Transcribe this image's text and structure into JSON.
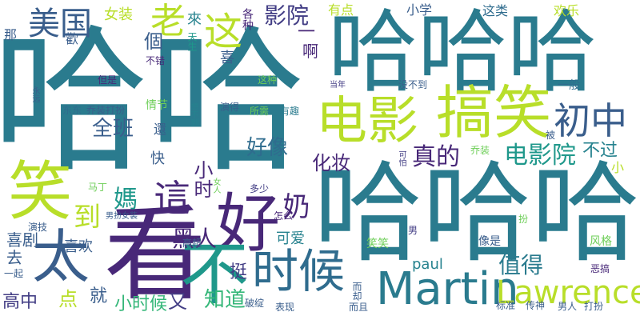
{
  "words": {
    "haha": "哈哈",
    "hahaha_a": "哈哈哈",
    "hahaha_b": "哈哈哈",
    "kan": "看",
    "hao": "好",
    "tai": "太",
    "bu": "不",
    "xiao": "笑",
    "dianying": "电影",
    "gaoxiao": "搞笑",
    "chuzhong": "初中",
    "shihou": "时候",
    "martin": "Martin",
    "lawrence": "Lawrence",
    "meiguo": "美国",
    "zhe_s": "這",
    "zhe": "这",
    "yingyuan": "影院",
    "dianyingyuan": "电影院",
    "haoxiang": "好像",
    "quanban": "全班",
    "zhende": "真的",
    "buguo": "不过",
    "huazhuang": "化妆",
    "nai": "奶",
    "dao": "到",
    "heiren": "黑人",
    "xiaoshi": "小时",
    "ma": "媽",
    "zhidao": "知道",
    "zhide": "值得",
    "xiju": "喜剧",
    "gaozhong": "高中",
    "xiaoshihou": "小时候",
    "ting": "挺",
    "keai": "可爱",
    "paul": "paul",
    "dian": "点",
    "jiu": "就",
    "you": "又",
    "lao": "老",
    "nvzhuang": "女装",
    "youdian": "有点",
    "xiaoxue": "小学",
    "zhelei": "这类",
    "huanle": "欢乐",
    "lai": "來",
    "gezhong": "各种",
    "yi": "一",
    "a": "啊",
    "ge": "個",
    "na": "那",
    "huan": "歡",
    "tiansheng": "天生",
    "xi": "喜",
    "bucuo": "不错",
    "danshi": "但是",
    "zhezhong": "这种",
    "dangnian": "当年",
    "meixiangdao": "没不到",
    "yiban": "一般",
    "yongyuan": "永远",
    "dongdong": "东东",
    "qiaozhuangdaban": "乔装打扮",
    "qingjie": "情节",
    "xiangbudao": "想不到",
    "yanguo": "演得",
    "suoxu": "所需",
    "youqu": "有趣",
    "bei": "被",
    "huan2": "還",
    "kuai": "快",
    "kepa": "可怕",
    "qiaozhuang": "乔装",
    "xiao2": "小",
    "mading": "马丁",
    "nvren": "女人",
    "duoshao": "多少",
    "nanban": "男扮女装",
    "zenme": "怎么",
    "ban": "扮",
    "yanji": "演技",
    "xihuan": "喜欢",
    "qu": "去",
    "gaochao": "高超",
    "xiaoxiao": "笑笑",
    "nan": "男",
    "xiangshi": "像是",
    "fengge": "风格",
    "egao": "恶搞",
    "yiqi": "一起",
    "weique": "而却",
    "pohuai": "破绽",
    "biaoxian": "表现",
    "erqie": "而且",
    "biaozhun": "标准",
    "chuanshen": "传神",
    "nanren": "男人",
    "daban": "打扮"
  },
  "palette": {
    "teal": "#2a7b8e",
    "green_teal": "#1f988b",
    "blue": "#3a5e8c",
    "purple": "#482878",
    "lime": "#b8de29",
    "green": "#6ece58"
  }
}
